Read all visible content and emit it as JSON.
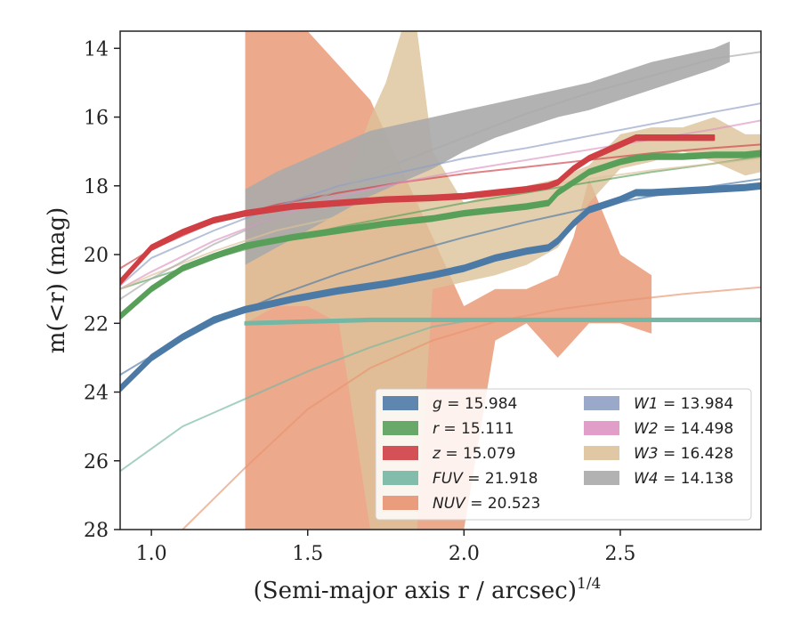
{
  "chart_data": {
    "type": "line",
    "xlabel": "(Semi-major axis r / arcsec)",
    "xlabel_exponent": "1/4",
    "ylabel": "m(<r) (mag)",
    "xlim": [
      0.9,
      2.95
    ],
    "ylim": [
      28,
      13.5
    ],
    "y_inverted": true,
    "xticks": [
      1.0,
      1.5,
      2.0,
      2.5
    ],
    "xtick_labels": [
      "1.0",
      "1.5",
      "2.0",
      "2.5"
    ],
    "yticks": [
      14,
      16,
      18,
      20,
      22,
      24,
      26,
      28
    ],
    "ytick_labels": [
      "14",
      "16",
      "18",
      "20",
      "22",
      "24",
      "26",
      "28"
    ],
    "grid": false,
    "legend_position": "lower-right",
    "legend": [
      {
        "band": "g",
        "value": "15.984",
        "color": "#4c7aa7"
      },
      {
        "band": "r",
        "value": "15.111",
        "color": "#58a05a"
      },
      {
        "band": "z",
        "value": "15.079",
        "color": "#cf3f44"
      },
      {
        "band": "FUV",
        "value": "21.918",
        "color": "#74b7a4"
      },
      {
        "band": "NUV",
        "value": "20.523",
        "color": "#e8946f"
      },
      {
        "band": "W1",
        "value": "13.984",
        "color": "#8f9fc4"
      },
      {
        "band": "W2",
        "value": "14.498",
        "color": "#dd93c3"
      },
      {
        "band": "W3",
        "value": "16.428",
        "color": "#dcc299"
      },
      {
        "band": "W4",
        "value": "14.138",
        "color": "#aaaaaa"
      }
    ],
    "series": [
      {
        "name": "g",
        "color": "#4c7aa7",
        "band_x": [
          0.9,
          1.0,
          1.1,
          1.2,
          1.3,
          1.45,
          1.6,
          1.75,
          1.9,
          2.0,
          2.1,
          2.2,
          2.27,
          2.3,
          2.35,
          2.4,
          2.5,
          2.55,
          2.6,
          2.7,
          2.8,
          2.9,
          2.95
        ],
        "band_mid": [
          23.9,
          23.0,
          22.4,
          21.9,
          21.6,
          21.3,
          21.05,
          20.85,
          20.6,
          20.4,
          20.1,
          19.9,
          19.8,
          19.6,
          19.1,
          18.7,
          18.4,
          18.2,
          18.2,
          18.15,
          18.1,
          18.05,
          18.0
        ],
        "band_half": 0.08,
        "model_x": [
          0.9,
          1.0,
          1.2,
          1.4,
          1.6,
          1.8,
          2.0,
          2.2,
          2.4,
          2.6,
          2.8,
          2.95
        ],
        "model_y": [
          23.5,
          22.95,
          22.0,
          21.2,
          20.55,
          20.0,
          19.5,
          19.05,
          18.65,
          18.3,
          18.0,
          17.8
        ]
      },
      {
        "name": "r",
        "color": "#58a05a",
        "band_x": [
          0.9,
          1.0,
          1.1,
          1.2,
          1.3,
          1.45,
          1.6,
          1.75,
          1.9,
          2.0,
          2.1,
          2.2,
          2.27,
          2.3,
          2.35,
          2.4,
          2.5,
          2.55,
          2.6,
          2.7,
          2.8,
          2.9,
          2.95
        ],
        "band_mid": [
          21.8,
          21.0,
          20.4,
          20.05,
          19.75,
          19.5,
          19.3,
          19.1,
          18.95,
          18.8,
          18.7,
          18.6,
          18.5,
          18.2,
          17.9,
          17.6,
          17.3,
          17.2,
          17.15,
          17.15,
          17.1,
          17.1,
          17.05
        ],
        "band_half": 0.07,
        "model_x": [
          0.9,
          1.0,
          1.2,
          1.4,
          1.6,
          1.8,
          2.0,
          2.2,
          2.4,
          2.6,
          2.8,
          2.95
        ],
        "model_y": [
          21.0,
          20.7,
          20.1,
          19.6,
          19.2,
          18.85,
          18.5,
          18.2,
          17.9,
          17.6,
          17.35,
          17.15
        ]
      },
      {
        "name": "z",
        "color": "#cf3f44",
        "band_x": [
          0.9,
          1.0,
          1.1,
          1.2,
          1.3,
          1.45,
          1.6,
          1.75,
          1.9,
          2.0,
          2.1,
          2.2,
          2.27,
          2.3,
          2.35,
          2.4,
          2.5,
          2.55,
          2.6,
          2.7,
          2.8
        ],
        "band_mid": [
          20.8,
          19.8,
          19.35,
          19.0,
          18.8,
          18.6,
          18.5,
          18.4,
          18.35,
          18.3,
          18.2,
          18.1,
          18.0,
          17.9,
          17.5,
          17.2,
          16.8,
          16.6,
          16.6,
          16.6,
          16.6
        ],
        "band_half": 0.07,
        "model_x": [
          0.9,
          1.0,
          1.2,
          1.4,
          1.6,
          1.8,
          2.0,
          2.2,
          2.4,
          2.6,
          2.8,
          2.95
        ],
        "model_y": [
          20.4,
          19.85,
          19.05,
          18.55,
          18.2,
          17.9,
          17.65,
          17.45,
          17.25,
          17.05,
          16.9,
          16.8
        ]
      },
      {
        "name": "FUV",
        "color": "#74b7a4",
        "band_x": [
          1.3,
          1.5,
          1.7,
          1.9,
          2.0,
          2.1,
          2.2,
          2.3,
          2.35,
          2.4,
          2.5,
          2.6,
          2.7,
          2.95
        ],
        "band_mid": [
          22.0,
          21.95,
          21.9,
          21.9,
          21.9,
          21.9,
          21.9,
          21.9,
          21.9,
          21.9,
          21.9,
          21.9,
          21.9,
          21.9
        ],
        "band_half": 0.04,
        "model_x": [
          0.9,
          1.1,
          1.3,
          1.5,
          1.7,
          1.9,
          2.0,
          2.2,
          2.5,
          2.95
        ],
        "model_y": [
          26.3,
          25.0,
          24.2,
          23.4,
          22.7,
          22.1,
          21.95,
          21.9,
          21.9,
          21.9
        ]
      },
      {
        "name": "NUV",
        "color": "#e8946f",
        "band_x": [
          1.3,
          1.5,
          1.7,
          2.0,
          2.1,
          2.2,
          2.3,
          2.35,
          2.4,
          2.5,
          2.6
        ],
        "band_upper": [
          13.5,
          13.5,
          15.5,
          21.5,
          21.0,
          21.0,
          20.6,
          19.5,
          17.8,
          20.0,
          20.6
        ],
        "band_lower": [
          28.0,
          28.0,
          28.0,
          28.0,
          22.5,
          22.0,
          23.0,
          22.5,
          22.0,
          22.0,
          22.3
        ],
        "model_x": [
          1.1,
          1.3,
          1.5,
          1.7,
          1.9,
          2.1,
          2.3,
          2.5,
          2.7,
          2.95
        ],
        "model_y": [
          28.0,
          26.2,
          24.5,
          23.3,
          22.5,
          21.95,
          21.6,
          21.35,
          21.15,
          20.95
        ]
      },
      {
        "name": "W1",
        "color": "#8f9fc4",
        "model_x": [
          0.9,
          1.0,
          1.2,
          1.4,
          1.6,
          1.8,
          2.0,
          2.2,
          2.4,
          2.6,
          2.8,
          2.95
        ],
        "model_y": [
          20.9,
          20.1,
          19.3,
          18.6,
          18.0,
          17.6,
          17.2,
          16.9,
          16.55,
          16.2,
          15.85,
          15.6
        ]
      },
      {
        "name": "W2",
        "color": "#dd93c3",
        "model_x": [
          0.9,
          1.0,
          1.2,
          1.4,
          1.6,
          1.8,
          2.0,
          2.2,
          2.4,
          2.6,
          2.8,
          2.95
        ],
        "model_y": [
          21.0,
          20.5,
          19.6,
          18.9,
          18.3,
          17.9,
          17.55,
          17.25,
          16.95,
          16.65,
          16.35,
          16.1
        ]
      },
      {
        "name": "W3",
        "color": "#dcc299",
        "band_x": [
          1.3,
          1.4,
          1.5,
          1.6,
          1.7,
          1.75,
          1.8,
          1.85,
          1.9,
          2.0,
          2.1,
          2.2,
          2.3,
          2.4,
          2.5,
          2.6,
          2.7,
          2.8,
          2.9,
          2.95
        ],
        "band_upper": [
          20.0,
          19.5,
          19.0,
          18.5,
          16.0,
          15.0,
          13.5,
          13.5,
          17.0,
          18.5,
          18.2,
          18.0,
          17.8,
          17.4,
          16.5,
          16.3,
          16.3,
          16.0,
          16.5,
          16.5
        ],
        "band_lower": [
          22.0,
          21.5,
          21.5,
          22.0,
          28.0,
          28.0,
          28.0,
          28.0,
          21.0,
          20.8,
          20.6,
          20.3,
          19.8,
          18.5,
          17.5,
          17.3,
          17.0,
          17.3,
          17.7,
          17.6
        ],
        "model_x": [
          0.9,
          1.0,
          1.2,
          1.4,
          1.6,
          1.8,
          2.0,
          2.2,
          2.4,
          2.6,
          2.8,
          2.95
        ],
        "model_y": [
          21.0,
          20.6,
          19.9,
          19.3,
          18.9,
          18.55,
          18.3,
          18.05,
          17.8,
          17.55,
          17.35,
          17.2
        ]
      },
      {
        "name": "W4",
        "color": "#aaaaaa",
        "band_x": [
          1.3,
          1.4,
          1.5,
          1.6,
          1.7,
          1.8,
          1.9,
          2.0,
          2.1,
          2.2,
          2.3,
          2.4,
          2.5,
          2.6,
          2.7,
          2.8,
          2.85
        ],
        "band_upper": [
          18.1,
          17.6,
          17.2,
          16.8,
          16.4,
          16.2,
          16.0,
          15.8,
          15.6,
          15.4,
          15.2,
          15.0,
          14.7,
          14.4,
          14.2,
          14.0,
          13.8
        ],
        "band_lower": [
          20.3,
          19.8,
          19.3,
          18.8,
          18.3,
          17.9,
          17.5,
          17.0,
          16.6,
          16.3,
          16.0,
          15.8,
          15.5,
          15.2,
          14.9,
          14.6,
          14.4
        ],
        "model_x": [
          0.9,
          1.0,
          1.2,
          1.4,
          1.6,
          1.8,
          2.0,
          2.2,
          2.4,
          2.6,
          2.8,
          2.95
        ],
        "model_y": [
          21.3,
          20.7,
          19.7,
          18.9,
          18.1,
          17.3,
          16.6,
          15.9,
          15.3,
          14.8,
          14.3,
          14.1
        ]
      }
    ]
  }
}
